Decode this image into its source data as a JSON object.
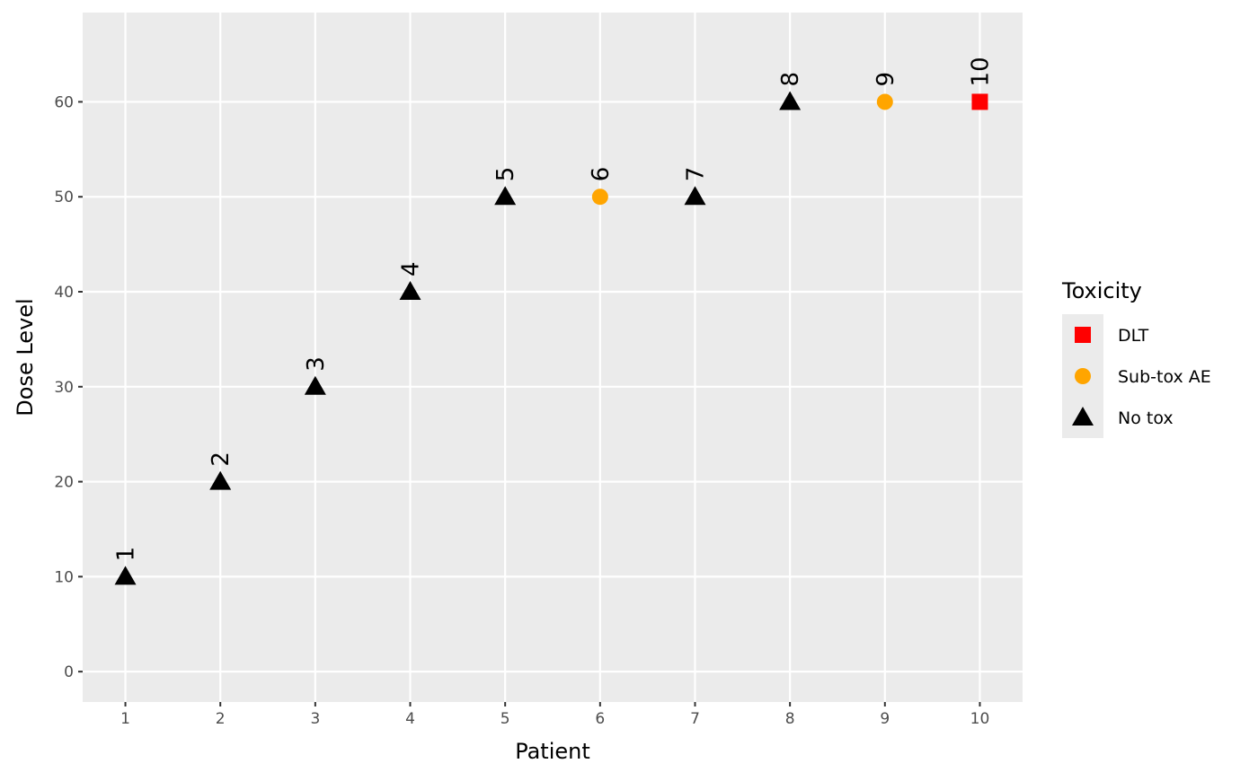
{
  "chart_data": {
    "type": "scatter",
    "title": "",
    "xlabel": "Patient",
    "ylabel": "Dose Level",
    "xlim": [
      0.55,
      10.45
    ],
    "ylim": [
      -3.2,
      69.4
    ],
    "xticks": [
      1,
      2,
      3,
      4,
      5,
      6,
      7,
      8,
      9,
      10
    ],
    "yticks": [
      0,
      10,
      20,
      30,
      40,
      50,
      60
    ],
    "grid": true,
    "legend": {
      "title": "Toxicity",
      "placement": "right",
      "entries": [
        {
          "label": "DLT",
          "shape": "square",
          "color": "#ff0000"
        },
        {
          "label": "Sub-tox AE",
          "shape": "circle",
          "color": "#ffa500"
        },
        {
          "label": "No tox",
          "shape": "triangle",
          "color": "#000000"
        }
      ]
    },
    "points": [
      {
        "x": 1,
        "y": 10,
        "label": "1",
        "toxicity": "No tox"
      },
      {
        "x": 2,
        "y": 20,
        "label": "2",
        "toxicity": "No tox"
      },
      {
        "x": 3,
        "y": 30,
        "label": "3",
        "toxicity": "No tox"
      },
      {
        "x": 4,
        "y": 40,
        "label": "4",
        "toxicity": "No tox"
      },
      {
        "x": 5,
        "y": 50,
        "label": "5",
        "toxicity": "No tox"
      },
      {
        "x": 6,
        "y": 50,
        "label": "6",
        "toxicity": "Sub-tox AE"
      },
      {
        "x": 7,
        "y": 50,
        "label": "7",
        "toxicity": "No tox"
      },
      {
        "x": 8,
        "y": 60,
        "label": "8",
        "toxicity": "No tox"
      },
      {
        "x": 9,
        "y": 60,
        "label": "9",
        "toxicity": "Sub-tox AE"
      },
      {
        "x": 10,
        "y": 60,
        "label": "10",
        "toxicity": "DLT"
      }
    ]
  }
}
